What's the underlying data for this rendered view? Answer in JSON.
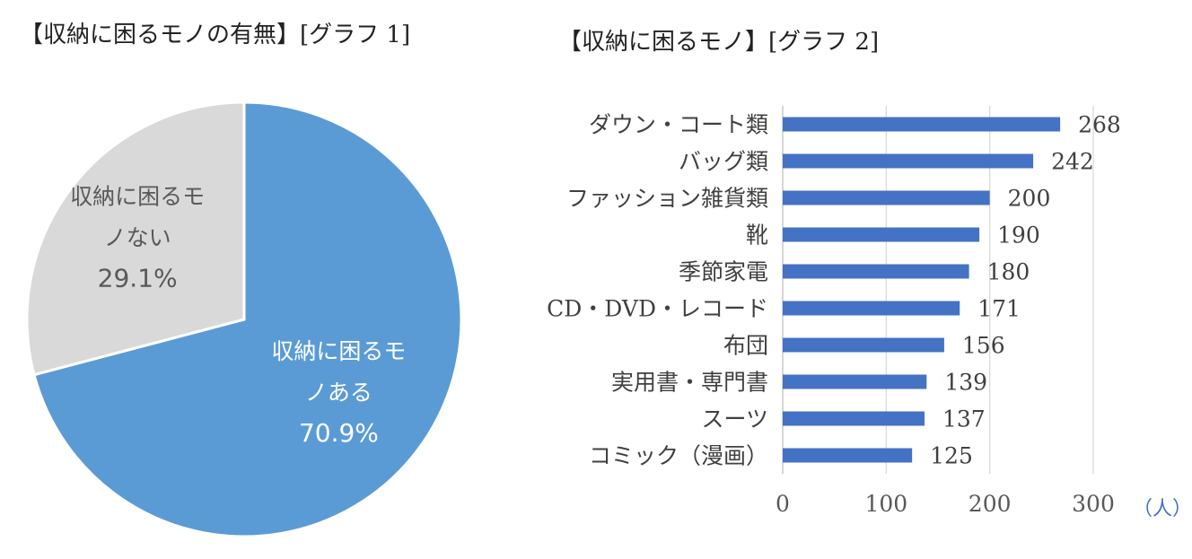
{
  "chart_data": [
    {
      "type": "pie",
      "title": "【収納に困るモノの有無】[グラフ 1]",
      "slices": [
        {
          "label_lines": [
            "収納に困るモ",
            "ノある"
          ],
          "value": 70.9,
          "value_label": "70.9%",
          "color": "#5b9bd5",
          "text_color": "#ffffff"
        },
        {
          "label_lines": [
            "収納に困るモ",
            "ノない"
          ],
          "value": 29.1,
          "value_label": "29.1%",
          "color": "#d9d9d9",
          "text_color": "#595959"
        }
      ]
    },
    {
      "type": "bar",
      "orientation": "horizontal",
      "title": "【収納に困るモノ】[グラフ 2]",
      "categories": [
        "ダウン・コート類",
        "バッグ類",
        "ファッション雑貨類",
        "靴",
        "季節家電",
        "CD・DVD・レコード",
        "布団",
        "実用書・専門書",
        "スーツ",
        "コミック（漫画）"
      ],
      "values": [
        268,
        242,
        200,
        190,
        180,
        171,
        156,
        139,
        137,
        125
      ],
      "xlim": [
        0,
        300
      ],
      "ticks": [
        "0",
        "100",
        "200",
        "300"
      ],
      "unit_label": "（人）",
      "grid": true,
      "bar_color": "#4472c4"
    }
  ]
}
